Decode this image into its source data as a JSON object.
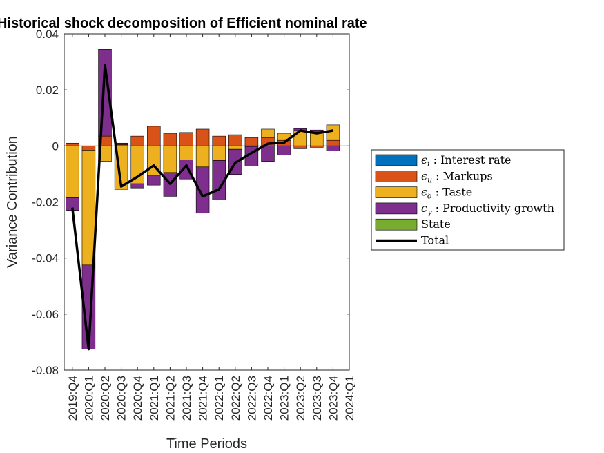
{
  "chart_data": {
    "type": "bar",
    "stacked": true,
    "title": "Historical shock decomposition of Efficient nominal rate",
    "xlabel": "Time Periods",
    "ylabel": "Variance Contribution",
    "ylim": [
      -0.08,
      0.04
    ],
    "yticks": [
      -0.08,
      -0.06,
      -0.04,
      -0.02,
      0,
      0.02,
      0.04
    ],
    "ytick_labels": [
      "-0.08",
      "-0.06",
      "-0.04",
      "-0.02",
      "0",
      "0.02",
      "0.04"
    ],
    "categories": [
      "2019:Q4",
      "2020:Q1",
      "2020:Q2",
      "2020:Q3",
      "2020:Q4",
      "2021:Q1",
      "2021:Q2",
      "2021:Q3",
      "2021:Q4",
      "2022:Q1",
      "2022:Q2",
      "2022:Q3",
      "2022:Q4",
      "2023:Q1",
      "2023:Q2",
      "2023:Q3",
      "2023:Q4",
      "2024:Q1"
    ],
    "grid": false,
    "legend_position": "right",
    "series": [
      {
        "sym": "ϵ",
        "sub": "i",
        "text": ": Interest rate",
        "color": "#0072BD",
        "values": [
          0,
          0,
          0,
          0,
          0,
          0,
          0,
          0,
          0,
          0,
          0,
          0,
          0,
          0,
          0,
          0,
          0,
          0
        ]
      },
      {
        "sym": "ϵ",
        "sub": "u",
        "text": ": Markups",
        "color": "#D95319",
        "values": [
          0.001,
          -0.0015,
          0.0035,
          0.0005,
          0.0035,
          0.007,
          0.0045,
          0.0048,
          0.006,
          0.0035,
          0.004,
          0.003,
          0.003,
          0.002,
          -0.001,
          -0.0005,
          0.002,
          0
        ]
      },
      {
        "sym": "ϵ",
        "sub": "δ",
        "text": ": Taste",
        "color": "#EDB120",
        "values": [
          -0.0185,
          -0.041,
          -0.0055,
          -0.0155,
          -0.0135,
          -0.0105,
          -0.0095,
          -0.005,
          -0.0075,
          -0.0052,
          -0.0012,
          -0.0002,
          0.003,
          0.0025,
          0.0055,
          0.005,
          0.0055,
          0
        ]
      },
      {
        "sym": "ϵ",
        "sub": "γ",
        "text": ": Productivity growth",
        "color": "#7E2F8E",
        "values": [
          -0.0045,
          -0.03,
          0.031,
          0.0005,
          -0.0015,
          -0.0035,
          -0.0085,
          -0.0068,
          -0.0165,
          -0.014,
          -0.009,
          -0.007,
          -0.0055,
          -0.0032,
          0.0007,
          0.0007,
          -0.0018,
          0
        ]
      },
      {
        "sym": "",
        "sub": "",
        "text": "State",
        "color": "#77AC30",
        "values": [
          0,
          0,
          0,
          0,
          0,
          0,
          0,
          0,
          0,
          0,
          0,
          0,
          0,
          0,
          0,
          0,
          0,
          0
        ]
      }
    ],
    "total": {
      "text": "Total",
      "color": "#000000",
      "values": [
        -0.022,
        -0.0725,
        0.029,
        -0.0145,
        -0.011,
        -0.007,
        -0.0135,
        -0.007,
        -0.018,
        -0.0155,
        -0.006,
        -0.0025,
        0.0008,
        0.0012,
        0.0055,
        0.0045,
        0.0055,
        null
      ]
    }
  }
}
